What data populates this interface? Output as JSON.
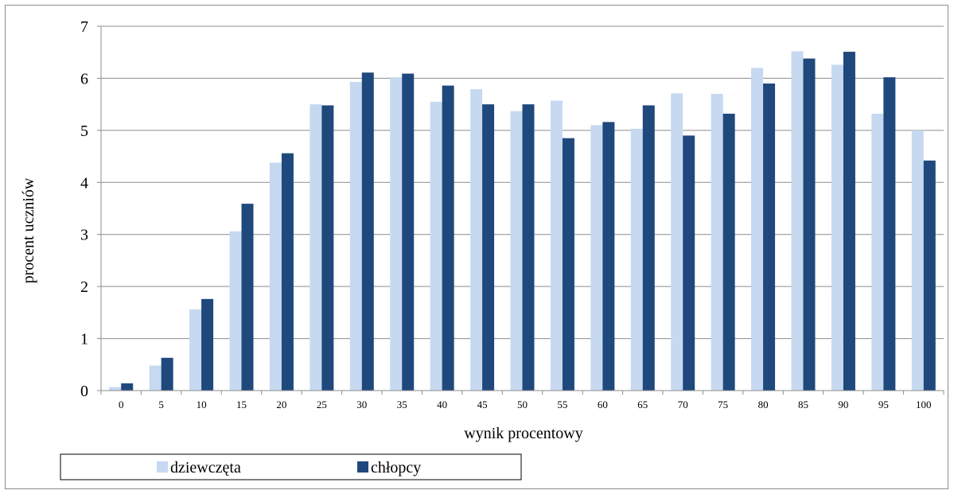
{
  "chart_data": {
    "type": "bar",
    "xlabel": "wynik procentowy",
    "ylabel": "procent uczniów",
    "ylim": [
      0,
      7
    ],
    "yticks": [
      "0",
      "1",
      "2",
      "3",
      "4",
      "5",
      "6",
      "7"
    ],
    "grid": true,
    "legend_position": "bottom-left",
    "categories": [
      "0",
      "5",
      "10",
      "15",
      "20",
      "25",
      "30",
      "35",
      "40",
      "45",
      "50",
      "55",
      "60",
      "65",
      "70",
      "75",
      "80",
      "85",
      "90",
      "95",
      "100"
    ],
    "series": [
      {
        "name": "dziewczęta",
        "color": "#c6d9f1",
        "values": [
          0.07,
          0.48,
          1.56,
          3.06,
          4.38,
          5.5,
          5.93,
          6.02,
          5.55,
          5.79,
          5.37,
          5.57,
          5.1,
          5.03,
          5.71,
          5.7,
          6.2,
          6.52,
          6.26,
          5.32,
          5.0
        ]
      },
      {
        "name": "chłopcy",
        "color": "#1f497d",
        "values": [
          0.14,
          0.63,
          1.76,
          3.59,
          4.56,
          5.48,
          6.11,
          6.09,
          5.86,
          5.5,
          5.5,
          4.85,
          5.16,
          5.48,
          4.9,
          5.32,
          5.9,
          6.38,
          6.51,
          6.02,
          4.42
        ]
      }
    ]
  }
}
